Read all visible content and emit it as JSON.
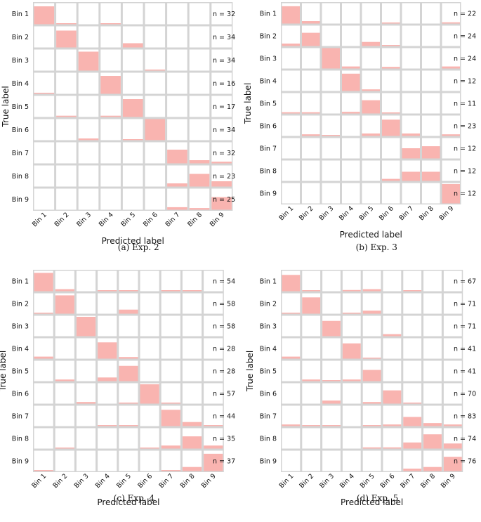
{
  "chart_data": [
    {
      "type": "heatmap",
      "caption": "(a) Exp. 2",
      "xlabel": "Predicted label",
      "ylabel": "True label",
      "row_labels": [
        "Bin 1",
        "Bin 2",
        "Bin 3",
        "Bin 4",
        "Bin 5",
        "Bin 6",
        "Bin 7",
        "Bin 8",
        "Bin 9"
      ],
      "col_labels": [
        "Bin 1",
        "Bin 2",
        "Bin 3",
        "Bin 4",
        "Bin 5",
        "Bin 6",
        "Bin 7",
        "Bin 8",
        "Bin 9"
      ],
      "n_labels": [
        "n = 32",
        "n = 34",
        "n = 34",
        "n = 16",
        "n = 17",
        "n = 34",
        "n = 32",
        "n = 23",
        "n = 25"
      ],
      "matrix": [
        [
          0.85,
          0.05,
          0,
          0.05,
          0,
          0,
          0,
          0,
          0
        ],
        [
          0,
          0.8,
          0,
          0,
          0.2,
          0,
          0,
          0,
          0
        ],
        [
          0,
          0,
          0.9,
          0,
          0,
          0.05,
          0,
          0,
          0
        ],
        [
          0.05,
          0,
          0,
          0.85,
          0,
          0,
          0,
          0,
          0
        ],
        [
          0,
          0.06,
          0,
          0.06,
          0.85,
          0,
          0,
          0,
          0
        ],
        [
          0,
          0,
          0.08,
          0,
          0.05,
          1.0,
          0,
          0,
          0
        ],
        [
          0,
          0,
          0,
          0,
          0,
          0,
          0.65,
          0.15,
          0.08
        ],
        [
          0,
          0,
          0,
          0,
          0,
          0,
          0.15,
          0.6,
          0.25
        ],
        [
          0,
          0,
          0,
          0,
          0,
          0,
          0.12,
          0.08,
          0.6
        ]
      ]
    },
    {
      "type": "heatmap",
      "caption": "(b) Exp. 3",
      "xlabel": "Predicted label",
      "ylabel": "True label",
      "row_labels": [
        "Bin 1",
        "Bin 2",
        "Bin 3",
        "Bin 4",
        "Bin 5",
        "Bin 6",
        "Bin 7",
        "Bin 8",
        "Bin 9"
      ],
      "col_labels": [
        "Bin 1",
        "Bin 2",
        "Bin 3",
        "Bin 4",
        "Bin 5",
        "Bin 6",
        "Bin 7",
        "Bin 8",
        "Bin 9"
      ],
      "n_labels": [
        "n = 22",
        "n = 24",
        "n = 24",
        "n = 12",
        "n = 11",
        "n = 23",
        "n = 12",
        "n = 12",
        "n = 12"
      ],
      "matrix": [
        [
          0.85,
          0.12,
          0,
          0,
          0,
          0.05,
          0,
          0,
          0.06
        ],
        [
          0.12,
          0.65,
          0,
          0,
          0.2,
          0.05,
          0,
          0,
          0
        ],
        [
          0,
          0,
          1.0,
          0.1,
          0,
          0.08,
          0,
          0,
          0.1
        ],
        [
          0,
          0,
          0,
          0.85,
          0.08,
          0,
          0,
          0,
          0
        ],
        [
          0.06,
          0.06,
          0,
          0.08,
          0.65,
          0.05,
          0,
          0,
          0
        ],
        [
          0,
          0.08,
          0.05,
          0,
          0.12,
          0.8,
          0.12,
          0,
          0.08
        ],
        [
          0,
          0,
          0,
          0,
          0,
          0,
          0.5,
          0.6,
          0
        ],
        [
          0,
          0,
          0,
          0,
          0,
          0.1,
          0.45,
          0.45,
          0
        ],
        [
          0,
          0,
          0,
          0,
          0,
          0,
          0,
          0,
          0.95
        ]
      ]
    },
    {
      "type": "heatmap",
      "caption": "(c) Exp. 4",
      "xlabel": "Predicted label",
      "ylabel": "True label",
      "row_labels": [
        "Bin 1",
        "Bin 2",
        "Bin 3",
        "Bin 4",
        "Bin 5",
        "Bin 6",
        "Bin 7",
        "Bin 8",
        "Bin 9"
      ],
      "col_labels": [
        "Bin 1",
        "Bin 2",
        "Bin 3",
        "Bin 4",
        "Bin 5",
        "Bin 6",
        "Bin 7",
        "Bin 8",
        "Bin 9"
      ],
      "n_labels": [
        "n = 54",
        "n = 58",
        "n = 58",
        "n = 28",
        "n = 28",
        "n = 57",
        "n = 44",
        "n = 35",
        "n = 37"
      ],
      "matrix": [
        [
          0.9,
          0.1,
          0,
          0.05,
          0.04,
          0,
          0.04,
          0.05,
          0
        ],
        [
          0.05,
          0.9,
          0,
          0,
          0.2,
          0,
          0,
          0,
          0
        ],
        [
          0,
          0,
          0.95,
          0,
          0,
          0,
          0,
          0,
          0
        ],
        [
          0.1,
          0,
          0,
          0.8,
          0.08,
          0,
          0,
          0,
          0
        ],
        [
          0,
          0.08,
          0,
          0.18,
          0.75,
          0,
          0,
          0,
          0
        ],
        [
          0,
          0,
          0.08,
          0,
          0.05,
          0.95,
          0.05,
          0,
          0
        ],
        [
          0,
          0,
          0,
          0.04,
          0.04,
          0,
          0.8,
          0.2,
          0.04
        ],
        [
          0,
          0.05,
          0,
          0,
          0,
          0.05,
          0.15,
          0.6,
          0.15
        ],
        [
          0.03,
          0,
          0,
          0,
          0,
          0,
          0.04,
          0.2,
          0.85
        ]
      ]
    },
    {
      "type": "heatmap",
      "caption": "(d) Exp. 5",
      "xlabel": "Predicted label",
      "ylabel": "True label",
      "row_labels": [
        "Bin 1",
        "Bin 2",
        "Bin 3",
        "Bin 4",
        "Bin 5",
        "Bin 6",
        "Bin 7",
        "Bin 8",
        "Bin 9"
      ],
      "col_labels": [
        "Bin 1",
        "Bin 2",
        "Bin 3",
        "Bin 4",
        "Bin 5",
        "Bin 6",
        "Bin 7",
        "Bin 8",
        "Bin 9"
      ],
      "n_labels": [
        "n = 67",
        "n = 71",
        "n = 71",
        "n = 41",
        "n = 41",
        "n = 70",
        "n = 83",
        "n = 74",
        "n = 76"
      ],
      "matrix": [
        [
          0.8,
          0.04,
          0,
          0.06,
          0.1,
          0,
          0.05,
          0,
          0
        ],
        [
          0.04,
          0.8,
          0,
          0.04,
          0.15,
          0,
          0,
          0,
          0
        ],
        [
          0,
          0,
          0.75,
          0,
          0,
          0.1,
          0,
          0,
          0
        ],
        [
          0.1,
          0,
          0,
          0.75,
          0.04,
          0,
          0,
          0,
          0
        ],
        [
          0,
          0.08,
          0.03,
          0.08,
          0.55,
          0,
          0,
          0,
          0
        ],
        [
          0,
          0,
          0.15,
          0,
          0.08,
          0.65,
          0.03,
          0,
          0
        ],
        [
          0.08,
          0.04,
          0.04,
          0,
          0.05,
          0.08,
          0.45,
          0.15,
          0.08
        ],
        [
          0,
          0,
          0,
          0,
          0.06,
          0.06,
          0.3,
          0.7,
          0.25
        ],
        [
          0,
          0,
          0,
          0,
          0,
          0,
          0.12,
          0.2,
          0.7
        ]
      ]
    }
  ],
  "colors": {
    "fill": "#f9b4b0",
    "cell_bg": "#ffffff",
    "grid": "#d4d4d4",
    "text": "#111111"
  }
}
